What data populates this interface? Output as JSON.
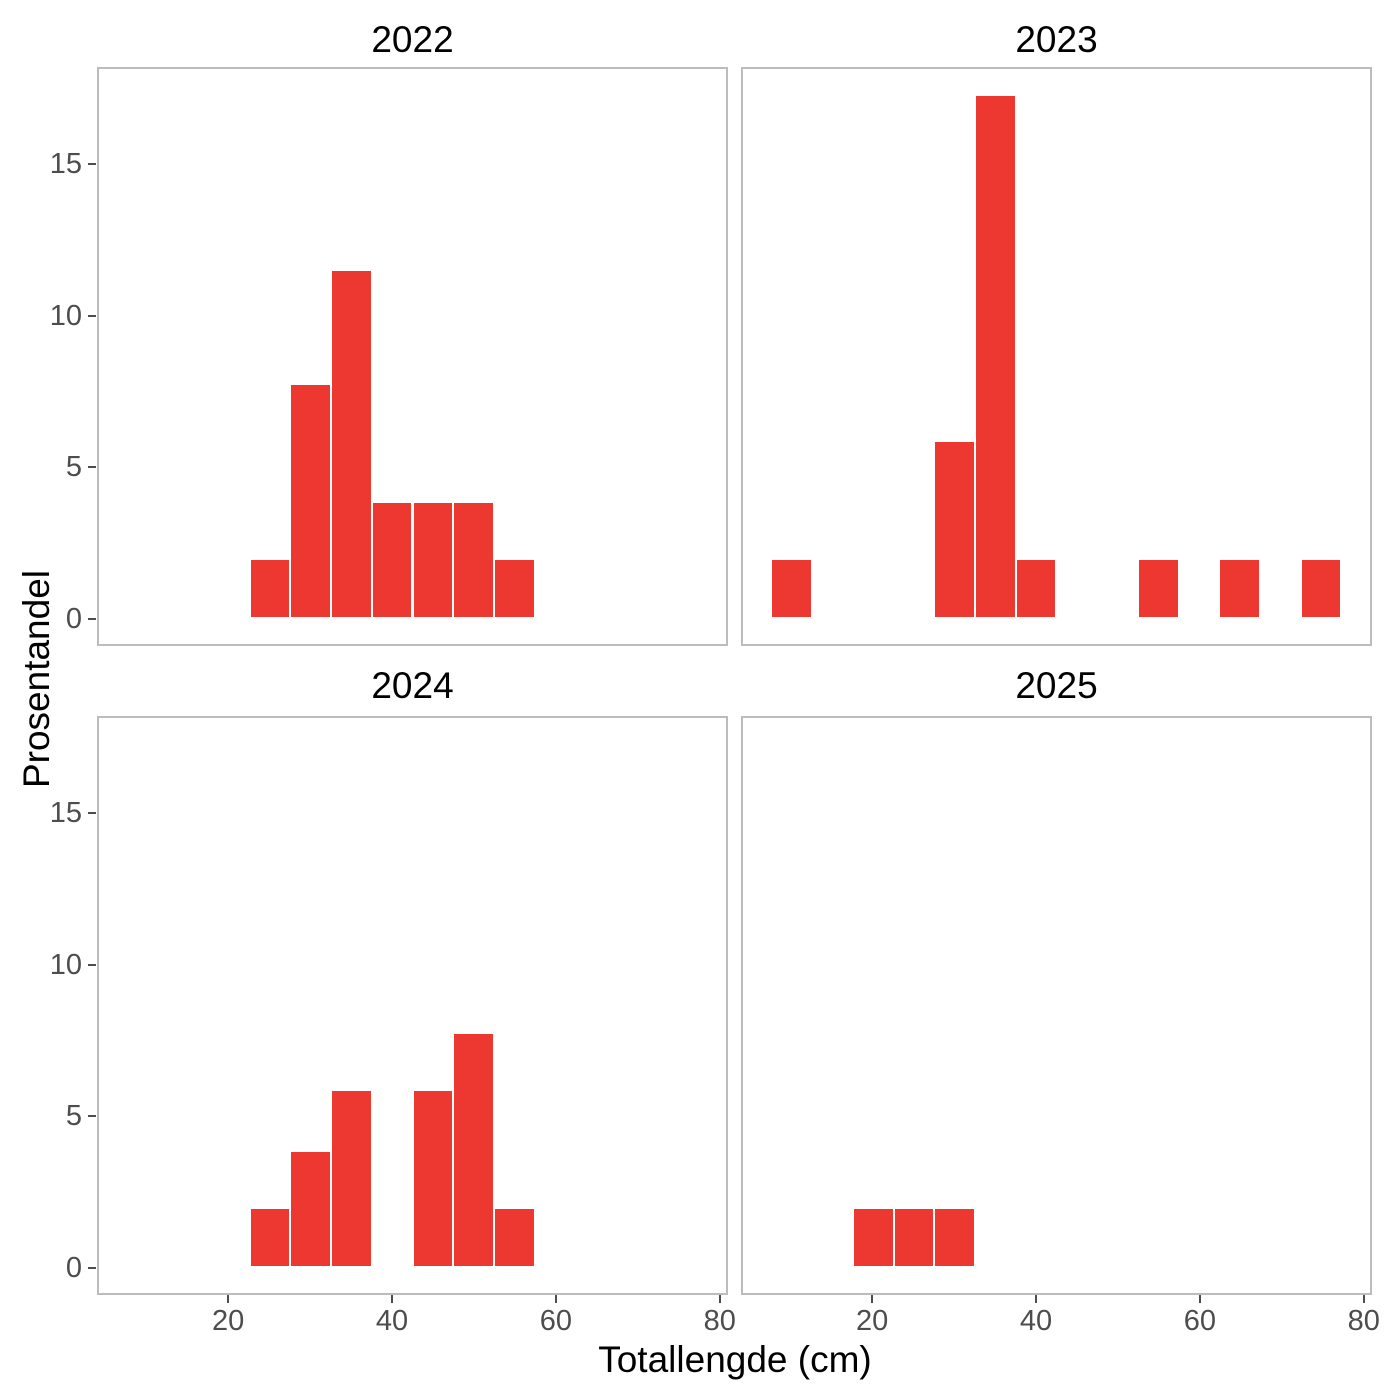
{
  "chart_data": {
    "type": "bar",
    "subtype": "faceted-histogram",
    "xlabel": "Totallengde (cm)",
    "ylabel": "Prosentandel",
    "x_ticks": [
      20,
      40,
      60,
      80
    ],
    "y_ticks": [
      0,
      5,
      10,
      15
    ],
    "xlim": [
      4,
      81
    ],
    "ylim": [
      -0.9,
      18.2
    ],
    "binwidth": 5,
    "bar_color": "#ED3832",
    "grid": false,
    "legend_position": "none",
    "facets": [
      {
        "title": "2022",
        "bin_centers": [
          25,
          30,
          35,
          40,
          45,
          50,
          55
        ],
        "values": [
          1.9,
          7.7,
          11.5,
          3.8,
          3.8,
          3.8,
          1.9
        ]
      },
      {
        "title": "2023",
        "bin_centers": [
          10,
          30,
          35,
          40,
          55,
          65,
          75
        ],
        "values": [
          1.9,
          5.8,
          17.3,
          1.9,
          1.9,
          1.9,
          1.9
        ]
      },
      {
        "title": "2024",
        "bin_centers": [
          25,
          30,
          35,
          45,
          50,
          55
        ],
        "values": [
          1.9,
          3.8,
          5.8,
          5.8,
          7.7,
          1.9
        ]
      },
      {
        "title": "2025",
        "bin_centers": [
          20,
          25,
          30
        ],
        "values": [
          1.9,
          1.9,
          1.9
        ]
      }
    ]
  },
  "colors": {
    "panel_border": "#BCBCBC",
    "tick_text": "#4D4D4D",
    "tick_mark": "#4D4D4D",
    "title_text": "#000000",
    "background": "#FFFFFF"
  }
}
